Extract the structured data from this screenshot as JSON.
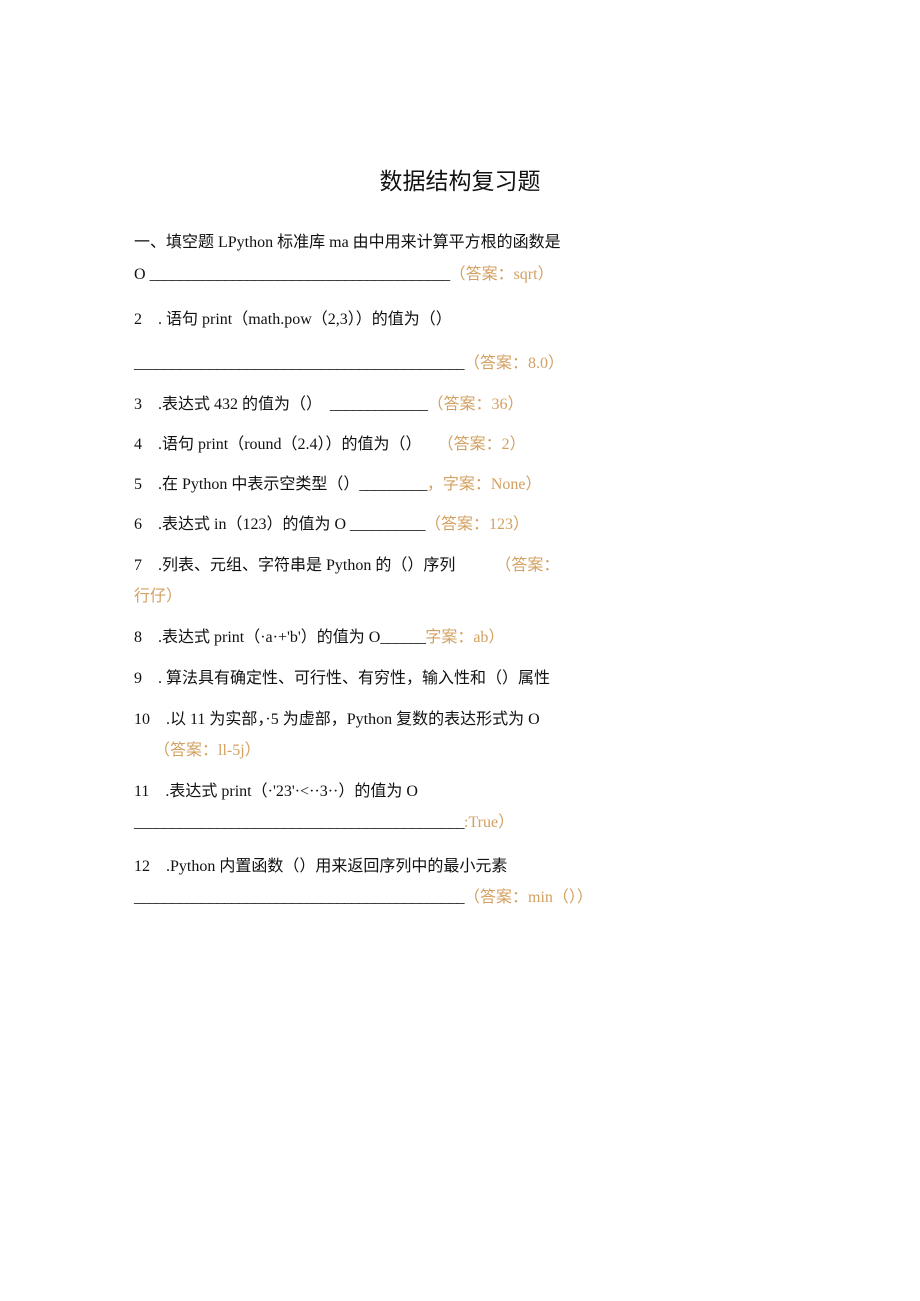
{
  "title": "数据结构复习题",
  "answer_color": "#d3a061",
  "lines": [
    [
      {
        "t": "一、填空题 LPython 标准库 ma 由中用来计算平方根的函数是"
      }
    ],
    [
      {
        "t": "O "
      },
      {
        "t": "________________________________________",
        "b": 1
      },
      {
        "t": "（答案：sqrt）",
        "a": 1
      }
    ],
    [
      {
        "t": "2　. 语句 print（math.pow（2,3））的值为（）"
      }
    ],
    [
      {
        "t": "____________________________________________",
        "b": 1
      },
      {
        "t": "（答案：8.0）",
        "a": 1
      }
    ],
    [
      {
        "t": "3　.表达式 432 的值为（）　"
      },
      {
        "t": "_____________",
        "b": 1
      },
      {
        "t": "（答案：36）",
        "a": 1
      }
    ],
    [
      {
        "t": "4　.语句 print（round（2.4））的值为（）　　"
      },
      {
        "t": "（答案：2）",
        "a": 1
      }
    ],
    [
      {
        "t": "5　.在 Python 中表示空类型（）"
      },
      {
        "t": "_________",
        "b": 1
      },
      {
        "t": "，字案：None）",
        "a": 1
      }
    ],
    [
      {
        "t": "6　.表达式 in（123）的值为 O "
      },
      {
        "t": "__________",
        "b": 1
      },
      {
        "t": "（答案：123）",
        "a": 1
      }
    ],
    [
      {
        "t": "7　.列表、元组、字符串是 Python 的（）序列　　　"
      },
      {
        "t": "（答案：",
        "a": 1
      }
    ],
    [
      {
        "t": "行仔）",
        "a": 1
      }
    ],
    [
      {
        "t": "8　.表达式 print（·a·+'b'）的值为 O"
      },
      {
        "t": "______",
        "b": 1
      },
      {
        "t": "字案：ab）",
        "a": 1
      }
    ],
    [
      {
        "t": "9　. 算法具有确定性、可行性、有穷性，输入性和（）属性"
      }
    ],
    [
      {
        "t": "10　.以 11 为实部，·5 为虚部，Python 复数的表达形式为 O"
      }
    ],
    [
      {
        "t": "　 （答案：ll-5j）",
        "a": 1
      }
    ],
    [
      {
        "t": "11　.表达式 print（·'23'·<··3··）的值为 O"
      }
    ],
    [
      {
        "t": "____________________________________________",
        "b": 1
      },
      {
        "t": ":True）",
        "a": 1
      }
    ],
    [
      {
        "t": "12　.Python 内置函数（）用来返回序列中的最小元素"
      }
    ],
    [
      {
        "t": "____________________________________________",
        "b": 1
      },
      {
        "t": "（答案：min（））",
        "a": 1
      }
    ]
  ]
}
